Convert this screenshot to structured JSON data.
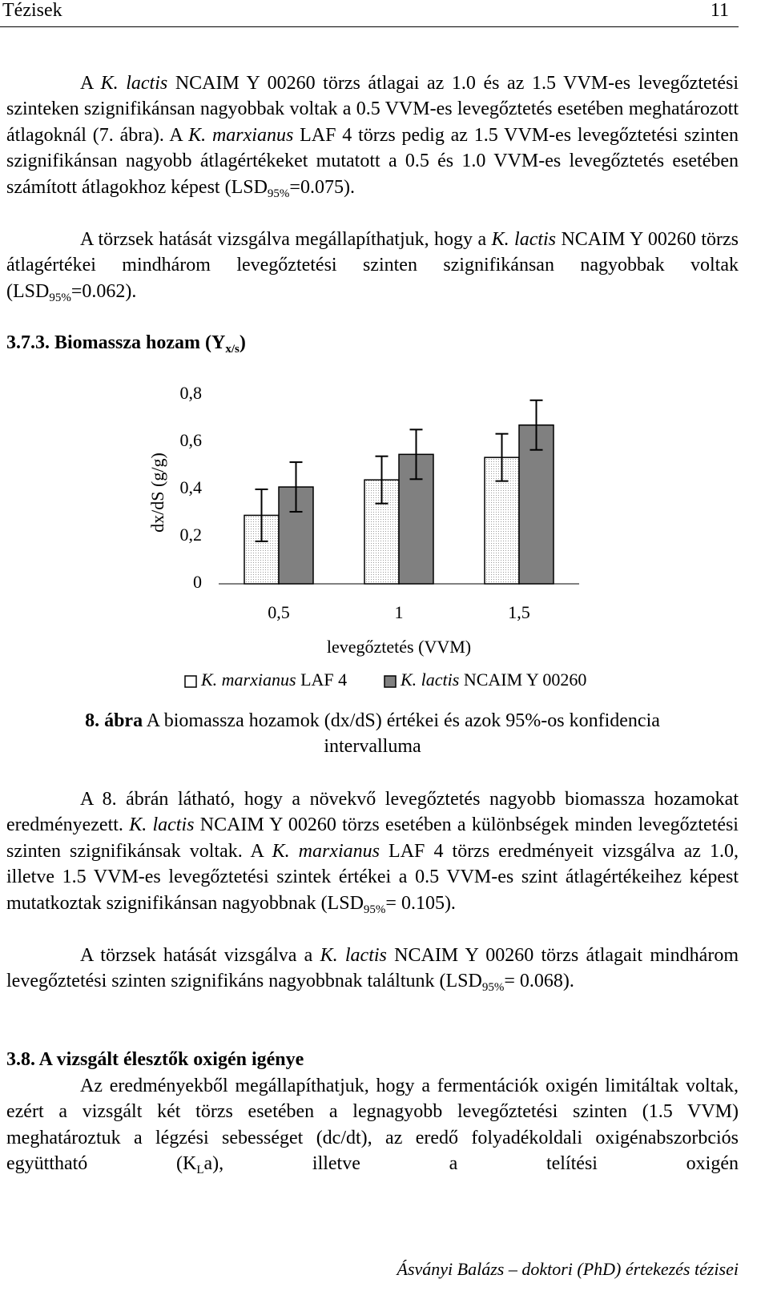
{
  "header": {
    "title": "Tézisek",
    "page": "11"
  },
  "text_before": [
    {
      "runs": [
        {
          "t": "A "
        },
        {
          "t": "K. lactis",
          "s": "i"
        },
        {
          "t": " NCAIM Y 00260 törzs átlagai az 1.0 és az 1.5 VVM-es levegőztetési szinteken szignifikánsan nagyobbak voltak a 0.5 VVM-es levegőztetés esetében meghatározott átlagoknál (7. ábra). A "
        },
        {
          "t": "K. marxianus",
          "s": "i"
        },
        {
          "t": " LAF 4 törzs pedig az 1.5 VVM-es levegőztetési szinten szignifikánsan nagyobb átlagértékeket mutatott a 0.5 és 1.0 VVM-es levegőztetés esetében számított átlagokhoz képest (LSD"
        },
        {
          "t": "95%",
          "s": "sub"
        },
        {
          "t": "=0.075)."
        }
      ]
    },
    {
      "runs": [
        {
          "t": "A törzsek hatását vizsgálva megállapíthatjuk, hogy a "
        },
        {
          "t": "K. lactis",
          "s": "i"
        },
        {
          "t": " NCAIM Y 00260 törzs átlagértékei mindhárom levegőztetési szinten szignifikánsan nagyobbak voltak (LSD"
        },
        {
          "t": "95%",
          "s": "sub"
        },
        {
          "t": "=0.062)."
        }
      ]
    }
  ],
  "heading_1": {
    "runs": [
      {
        "t": "3.7.3. Biomassza hozam (Y"
      },
      {
        "t": "x/s",
        "s": "sub"
      },
      {
        "t": ")"
      }
    ]
  },
  "chart_data": {
    "type": "bar",
    "categories": [
      "0,5",
      "1",
      "1,5"
    ],
    "x_label": "levegőztetés (VVM)",
    "y_label": "dx/dS (g/g)",
    "ylim": [
      0,
      0.8
    ],
    "yticks": [
      0,
      {
        "value": 0.2,
        "label": "0,2"
      },
      {
        "value": 0.4,
        "label": "0,4"
      },
      {
        "value": 0.6,
        "label": "0,6"
      },
      {
        "value": 0.8,
        "label": "0,8"
      }
    ],
    "grid": false,
    "legend": "bottom",
    "series": [
      {
        "name": "K. marxianus LAF 4",
        "color": "#f2f2f2",
        "pattern": "dots",
        "values": [
          0.29,
          0.44,
          0.535
        ],
        "errors": [
          0.11,
          0.1,
          0.1
        ]
      },
      {
        "name": "K. lactis NCAIM Y 00260",
        "color": "#808080",
        "values": [
          0.41,
          0.548,
          0.672
        ],
        "errors": [
          0.105,
          0.105,
          0.105
        ]
      }
    ]
  },
  "caption": {
    "runs": [
      {
        "t": "8. ábra",
        "s": "b"
      },
      {
        "t": " A biomassza hozamok (dx/dS) értékei és azok 95%-os konfidencia intervalluma"
      }
    ]
  },
  "text_after": [
    {
      "runs": [
        {
          "t": "A 8. ábrán látható, hogy a növekvő levegőztetés nagyobb biomassza hozamokat eredményezett. "
        },
        {
          "t": "K. lactis",
          "s": "i"
        },
        {
          "t": " NCAIM Y 00260 törzs esetében a különbségek minden levegőztetési szinten szignifikánsak voltak. A "
        },
        {
          "t": "K. marxianus",
          "s": "i"
        },
        {
          "t": " LAF 4 törzs eredményeit vizsgálva az 1.0, illetve 1.5 VVM-es levegőztetési szintek értékei a 0.5 VVM-es szint átlagértékeihez képest mutatkoztak szignifikánsan nagyobbnak (LSD"
        },
        {
          "t": "95%",
          "s": "sub"
        },
        {
          "t": "= 0.105)."
        }
      ]
    },
    {
      "runs": [
        {
          "t": "A törzsek hatását vizsgálva a "
        },
        {
          "t": "K. lactis",
          "s": "i"
        },
        {
          "t": " NCAIM Y 00260 törzs átlagait mindhárom levegőztetési szinten szignifikáns nagyobbnak találtunk (LSD"
        },
        {
          "t": "95%",
          "s": "sub"
        },
        {
          "t": "= 0.068)."
        }
      ]
    }
  ],
  "heading_2": {
    "runs": [
      {
        "t": "3.8. A vizsgált élesztők oxigén igénye"
      }
    ]
  },
  "text_last": {
    "runs": [
      {
        "t": "Az eredményekből megállapíthatjuk, hogy a fermentációk oxigén limitáltak voltak, ezért a vizsgált két törzs esetében a legnagyobb levegőztetési szinten (1.5 VVM) meghatároztuk a légzési sebességet (dc/dt), az eredő folyadékoldali oxigénabszorbciós együttható (K"
      },
      {
        "t": "L",
        "s": "sub"
      },
      {
        "t": "a), illetve a telítési oxigén"
      }
    ]
  },
  "footer": "Ásványi Balázs – doktori (PhD) értekezés tézisei"
}
